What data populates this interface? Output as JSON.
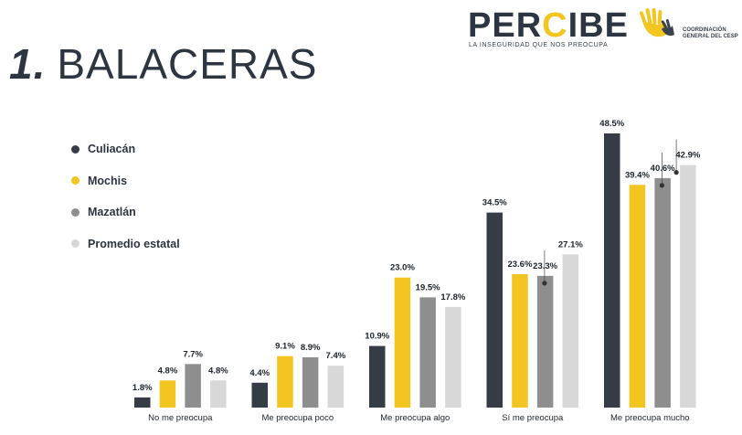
{
  "logo": {
    "word_start": "PER",
    "word_highlight": "C",
    "word_end": "IBE",
    "subtitle": "LA INSEGURIDAD QUE NOS PREOCUPA",
    "coord_line1": "COORDINACIÓN",
    "coord_line2": "GENERAL DEL CESP"
  },
  "title": {
    "number": "1.",
    "text": "BALACERAS"
  },
  "colors": {
    "culiacan": "#353c45",
    "mochis": "#f2c520",
    "mazatlan": "#8e8e8e",
    "promedio": "#d8d8d8"
  },
  "chart_data": {
    "type": "bar",
    "title": "1. BALACERAS",
    "xlabel": "",
    "ylabel": "",
    "ylim": [
      0,
      50
    ],
    "grid": false,
    "legend_position": "top-left",
    "categories": [
      "No me preocupa",
      "Me preocupa poco",
      "Me preocupa algo",
      "Sí me preocupa",
      "Me preocupa mucho"
    ],
    "series": [
      {
        "name": "Culiacán",
        "color": "#353c45",
        "values": [
          1.8,
          4.4,
          10.9,
          34.5,
          48.5
        ],
        "labels": [
          "1.8%",
          "4.4%",
          "10.9%",
          "34.5%",
          "48.5%"
        ]
      },
      {
        "name": "Mochis",
        "color": "#f2c520",
        "values": [
          4.8,
          9.1,
          23.0,
          23.6,
          39.4
        ],
        "labels": [
          "4.8%",
          "9.1%",
          "23.0%",
          "23.6%",
          "39.4%"
        ]
      },
      {
        "name": "Mazatlán",
        "color": "#8e8e8e",
        "values": [
          7.7,
          8.9,
          19.5,
          23.3,
          40.6
        ],
        "labels": [
          "7.7%",
          "8.9%",
          "19.5%",
          "23.3%",
          "40.6%"
        ]
      },
      {
        "name": "Promedio estatal",
        "color": "#d8d8d8",
        "values": [
          4.8,
          7.4,
          17.8,
          27.1,
          42.9
        ],
        "labels": [
          "4.8%",
          "7.4%",
          "17.8%",
          "27.1%",
          "42.9%"
        ]
      }
    ]
  }
}
